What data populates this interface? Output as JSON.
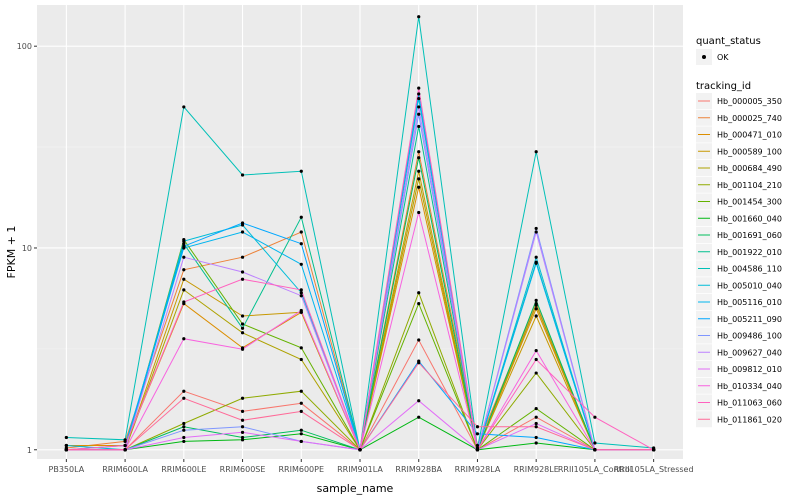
{
  "chart_data": {
    "type": "line",
    "title": "",
    "xlabel": "sample_name",
    "ylabel": "FPKM + 1",
    "y_scale": "log10",
    "ylim": [
      0.9,
      160
    ],
    "y_ticks": [
      1,
      10,
      100
    ],
    "y_tick_labels": [
      "1",
      "10",
      "100"
    ],
    "grid": true,
    "legend_position": "right",
    "categories": [
      "PB350LA",
      "RRIM600LA",
      "RRIM600LE",
      "RRIM600SE",
      "RRIM600PE",
      "RRIM901LA",
      "RRIM928BA",
      "RRIM928LA",
      "RRIM928LE",
      "RRII105LA_Control",
      "RRII105LA_Stressed"
    ],
    "legend_shape": {
      "title": "quant_status",
      "entries": [
        "OK"
      ]
    },
    "legend_color_title": "tracking_id",
    "series": [
      {
        "name": "Hb_000005_350",
        "color": "#F8766D",
        "values": [
          1.0,
          1.0,
          1.95,
          1.55,
          1.7,
          1.0,
          3.5,
          1.0,
          1.45,
          1.0,
          1.0
        ]
      },
      {
        "name": "Hb_000025_740",
        "color": "#EC8239",
        "values": [
          1.02,
          1.1,
          7.8,
          9.0,
          12.0,
          1.0,
          30.0,
          1.05,
          5.3,
          1.0,
          1.0
        ]
      },
      {
        "name": "Hb_000471_010",
        "color": "#DB8E00",
        "values": [
          1.05,
          1.05,
          5.3,
          3.2,
          4.8,
          1.0,
          20.0,
          1.0,
          5.0,
          1.0,
          1.0
        ]
      },
      {
        "name": "Hb_000589_100",
        "color": "#C79800",
        "values": [
          1.0,
          1.0,
          7.0,
          4.6,
          4.8,
          1.0,
          24.0,
          1.0,
          4.6,
          1.0,
          1.0
        ]
      },
      {
        "name": "Hb_000684_490",
        "color": "#AEA200",
        "values": [
          1.0,
          1.0,
          6.2,
          3.8,
          2.8,
          1.0,
          22.0,
          1.0,
          5.2,
          1.0,
          1.0
        ]
      },
      {
        "name": "Hb_001104_210",
        "color": "#8FAA00",
        "values": [
          1.0,
          1.0,
          1.35,
          1.8,
          1.95,
          1.0,
          6.0,
          1.0,
          2.4,
          1.0,
          1.0
        ]
      },
      {
        "name": "Hb_001454_300",
        "color": "#64B200",
        "values": [
          1.0,
          1.0,
          11.0,
          4.2,
          3.2,
          1.0,
          5.3,
          1.0,
          1.6,
          1.0,
          1.0
        ]
      },
      {
        "name": "Hb_001660_040",
        "color": "#00B813",
        "values": [
          1.0,
          1.0,
          1.1,
          1.12,
          1.2,
          1.0,
          1.45,
          1.0,
          1.08,
          1.0,
          1.0
        ]
      },
      {
        "name": "Hb_001691_060",
        "color": "#00BD5C",
        "values": [
          1.0,
          1.0,
          1.3,
          1.15,
          1.25,
          1.0,
          28.0,
          1.0,
          5.5,
          1.0,
          1.0
        ]
      },
      {
        "name": "Hb_001922_010",
        "color": "#00C08E",
        "values": [
          1.0,
          1.0,
          10.5,
          4.0,
          14.2,
          1.0,
          40.0,
          1.0,
          8.5,
          1.0,
          1.0
        ]
      },
      {
        "name": "Hb_004586_110",
        "color": "#00C0B7",
        "values": [
          1.15,
          1.12,
          50.0,
          23.0,
          24.0,
          1.0,
          140.0,
          1.02,
          30.0,
          1.08,
          1.02
        ]
      },
      {
        "name": "Hb_005010_040",
        "color": "#00BCD8",
        "values": [
          1.05,
          1.0,
          10.8,
          13.0,
          6.0,
          1.0,
          55.0,
          1.0,
          9.0,
          1.0,
          1.0
        ]
      },
      {
        "name": "Hb_005116_010",
        "color": "#00B5EE",
        "values": [
          1.0,
          1.05,
          10.0,
          12.0,
          8.3,
          1.0,
          58.0,
          1.0,
          8.4,
          1.0,
          1.0
        ]
      },
      {
        "name": "Hb_005211_090",
        "color": "#00A7FF",
        "values": [
          1.0,
          1.0,
          10.2,
          13.3,
          10.5,
          1.0,
          2.75,
          1.2,
          1.15,
          1.0,
          1.0
        ]
      },
      {
        "name": "Hb_009486_100",
        "color": "#7F96FF",
        "values": [
          1.0,
          1.0,
          1.25,
          1.3,
          1.1,
          1.0,
          46.0,
          1.0,
          12.5,
          1.0,
          1.0
        ]
      },
      {
        "name": "Hb_009627_040",
        "color": "#BC81FF",
        "values": [
          1.0,
          1.0,
          9.0,
          7.6,
          5.8,
          1.0,
          50.0,
          1.0,
          12.0,
          1.0,
          1.0
        ]
      },
      {
        "name": "Hb_009812_010",
        "color": "#E26EF7",
        "values": [
          1.0,
          1.0,
          1.15,
          1.22,
          1.1,
          1.0,
          1.75,
          1.0,
          1.35,
          1.0,
          1.0
        ]
      },
      {
        "name": "Hb_010334_040",
        "color": "#F863DF",
        "values": [
          1.0,
          1.0,
          3.55,
          3.15,
          4.9,
          1.0,
          15.0,
          1.0,
          3.1,
          1.0,
          1.0
        ]
      },
      {
        "name": "Hb_011063_060",
        "color": "#FF62BF",
        "values": [
          1.0,
          1.05,
          5.4,
          7.0,
          6.2,
          1.0,
          62.0,
          1.0,
          2.8,
          1.45,
          1.0
        ]
      },
      {
        "name": "Hb_011861_020",
        "color": "#FF6A98",
        "values": [
          1.0,
          1.0,
          1.8,
          1.4,
          1.55,
          1.0,
          2.7,
          1.3,
          1.3,
          1.0,
          1.0
        ]
      }
    ]
  }
}
